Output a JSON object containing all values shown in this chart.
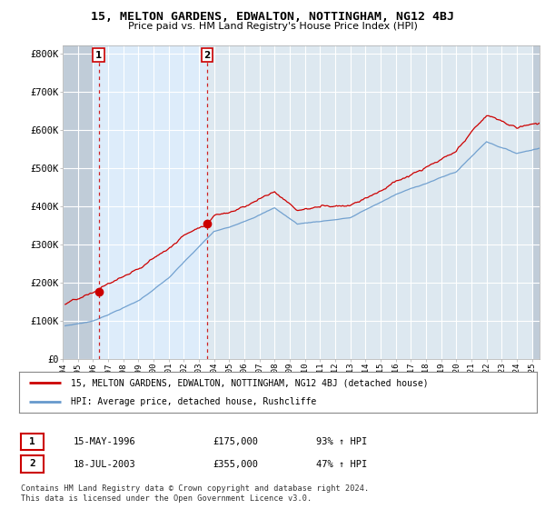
{
  "title": "15, MELTON GARDENS, EDWALTON, NOTTINGHAM, NG12 4BJ",
  "subtitle": "Price paid vs. HM Land Registry's House Price Index (HPI)",
  "ylabel_ticks": [
    "£0",
    "£100K",
    "£200K",
    "£300K",
    "£400K",
    "£500K",
    "£600K",
    "£700K",
    "£800K"
  ],
  "ytick_values": [
    0,
    100000,
    200000,
    300000,
    400000,
    500000,
    600000,
    700000,
    800000
  ],
  "ylim": [
    0,
    820000
  ],
  "xlim_start": 1994.0,
  "xlim_end": 2025.5,
  "sale1_year": 1996.37,
  "sale1_price": 175000,
  "sale1_label": "1",
  "sale2_year": 2003.54,
  "sale2_price": 355000,
  "sale2_label": "2",
  "line1_color": "#cc0000",
  "line2_color": "#6699cc",
  "hatch_region_end": 1996.0,
  "blue_shade_start": 1996.0,
  "blue_shade_end": 2003.54,
  "legend_line1": "15, MELTON GARDENS, EDWALTON, NOTTINGHAM, NG12 4BJ (detached house)",
  "legend_line2": "HPI: Average price, detached house, Rushcliffe",
  "table_row1": [
    "1",
    "15-MAY-1996",
    "£175,000",
    "93% ↑ HPI"
  ],
  "table_row2": [
    "2",
    "18-JUL-2003",
    "£355,000",
    "47% ↑ HPI"
  ],
  "footer": "Contains HM Land Registry data © Crown copyright and database right 2024.\nThis data is licensed under the Open Government Licence v3.0.",
  "bg_color": "#ffffff",
  "plot_bg_color": "#dde8f0",
  "plot_bg_color2": "#e8f0f8",
  "grid_color": "#ffffff",
  "hatch_color": "#c0ccd8"
}
